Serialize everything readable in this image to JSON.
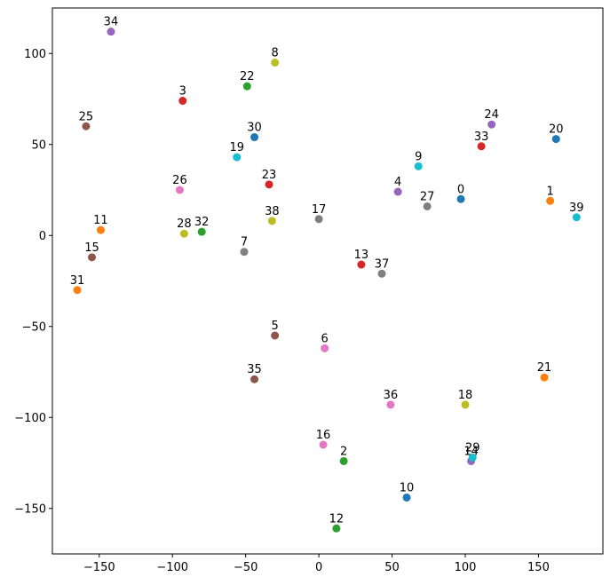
{
  "chart_data": {
    "type": "scatter",
    "title": "",
    "xlabel": "",
    "ylabel": "",
    "xlim": [
      -182,
      194
    ],
    "ylim": [
      -175,
      125
    ],
    "xticks": [
      -150,
      -100,
      -50,
      0,
      50,
      100,
      150
    ],
    "yticks": [
      -150,
      -100,
      -50,
      0,
      50,
      100
    ],
    "grid": false,
    "legend": "none",
    "points": [
      {
        "label": "0",
        "x": 97,
        "y": 20,
        "color": "#1f77b4"
      },
      {
        "label": "1",
        "x": 158,
        "y": 19,
        "color": "#ff7f0e"
      },
      {
        "label": "2",
        "x": 17,
        "y": -124,
        "color": "#2ca02c"
      },
      {
        "label": "3",
        "x": -93,
        "y": 74,
        "color": "#d62728"
      },
      {
        "label": "4",
        "x": 54,
        "y": 24,
        "color": "#9467bd"
      },
      {
        "label": "5",
        "x": -30,
        "y": -55,
        "color": "#8c564b"
      },
      {
        "label": "6",
        "x": 4,
        "y": -62,
        "color": "#e377c2"
      },
      {
        "label": "7",
        "x": -51,
        "y": -9,
        "color": "#7f7f7f"
      },
      {
        "label": "8",
        "x": -30,
        "y": 95,
        "color": "#bcbd22"
      },
      {
        "label": "9",
        "x": 68,
        "y": 38,
        "color": "#17becf"
      },
      {
        "label": "10",
        "x": 60,
        "y": -144,
        "color": "#1f77b4"
      },
      {
        "label": "11",
        "x": -149,
        "y": 3,
        "color": "#ff7f0e"
      },
      {
        "label": "12",
        "x": 12,
        "y": -161,
        "color": "#2ca02c"
      },
      {
        "label": "13",
        "x": 29,
        "y": -16,
        "color": "#d62728"
      },
      {
        "label": "14",
        "x": 104,
        "y": -124,
        "color": "#9467bd"
      },
      {
        "label": "15",
        "x": -155,
        "y": -12,
        "color": "#8c564b"
      },
      {
        "label": "16",
        "x": 3,
        "y": -115,
        "color": "#e377c2"
      },
      {
        "label": "17",
        "x": 0,
        "y": 9,
        "color": "#7f7f7f"
      },
      {
        "label": "18",
        "x": 100,
        "y": -93,
        "color": "#bcbd22"
      },
      {
        "label": "19",
        "x": -56,
        "y": 43,
        "color": "#17becf"
      },
      {
        "label": "20",
        "x": 162,
        "y": 53,
        "color": "#1f77b4"
      },
      {
        "label": "21",
        "x": 154,
        "y": -78,
        "color": "#ff7f0e"
      },
      {
        "label": "22",
        "x": -49,
        "y": 82,
        "color": "#2ca02c"
      },
      {
        "label": "23",
        "x": -34,
        "y": 28,
        "color": "#d62728"
      },
      {
        "label": "24",
        "x": 118,
        "y": 61,
        "color": "#9467bd"
      },
      {
        "label": "25",
        "x": -159,
        "y": 60,
        "color": "#8c564b"
      },
      {
        "label": "26",
        "x": -95,
        "y": 25,
        "color": "#e377c2"
      },
      {
        "label": "27",
        "x": 74,
        "y": 16,
        "color": "#7f7f7f"
      },
      {
        "label": "28",
        "x": -92,
        "y": 1,
        "color": "#bcbd22"
      },
      {
        "label": "29",
        "x": 105,
        "y": -122,
        "color": "#17becf"
      },
      {
        "label": "30",
        "x": -44,
        "y": 54,
        "color": "#1f77b4"
      },
      {
        "label": "31",
        "x": -165,
        "y": -30,
        "color": "#ff7f0e"
      },
      {
        "label": "32",
        "x": -80,
        "y": 2,
        "color": "#2ca02c"
      },
      {
        "label": "33",
        "x": 111,
        "y": 49,
        "color": "#d62728"
      },
      {
        "label": "34",
        "x": -142,
        "y": 112,
        "color": "#9467bd"
      },
      {
        "label": "35",
        "x": -44,
        "y": -79,
        "color": "#8c564b"
      },
      {
        "label": "36",
        "x": 49,
        "y": -93,
        "color": "#e377c2"
      },
      {
        "label": "37",
        "x": 43,
        "y": -21,
        "color": "#7f7f7f"
      },
      {
        "label": "38",
        "x": -32,
        "y": 8,
        "color": "#bcbd22"
      },
      {
        "label": "39",
        "x": 176,
        "y": 10,
        "color": "#17becf"
      }
    ]
  }
}
